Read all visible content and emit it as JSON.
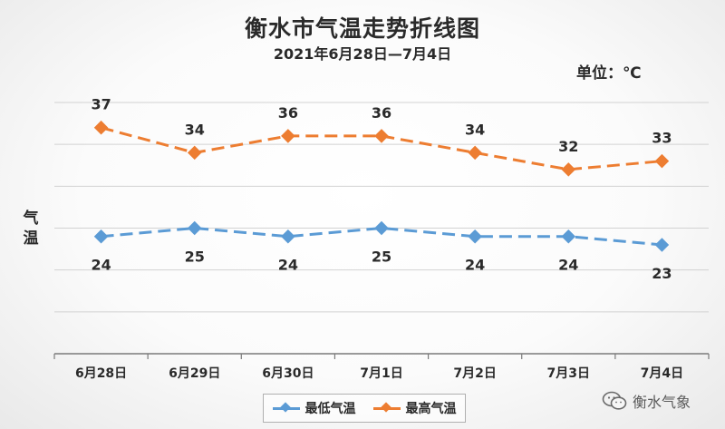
{
  "chart_data": {
    "type": "line",
    "title": "衡水市气温走势折线图",
    "subtitle": "2021年6月28日—7月4日",
    "unit_label": "单位：℃",
    "ylabel": "气温",
    "categories": [
      "6月28日",
      "6月29日",
      "6月30日",
      "7月1日",
      "7月2日",
      "7月3日",
      "7月4日"
    ],
    "ylim": [
      10,
      40
    ],
    "grid": true,
    "legend_position": "bottom",
    "series": [
      {
        "name": "最低气温",
        "values": [
          24,
          25,
          24,
          25,
          24,
          24,
          23
        ],
        "color": "#5b9bd5"
      },
      {
        "name": "最高气温",
        "values": [
          37,
          34,
          36,
          36,
          34,
          32,
          33
        ],
        "color": "#ed7d31"
      }
    ]
  },
  "watermark": {
    "text": "衡水气象",
    "icon": "wechat-icon"
  }
}
